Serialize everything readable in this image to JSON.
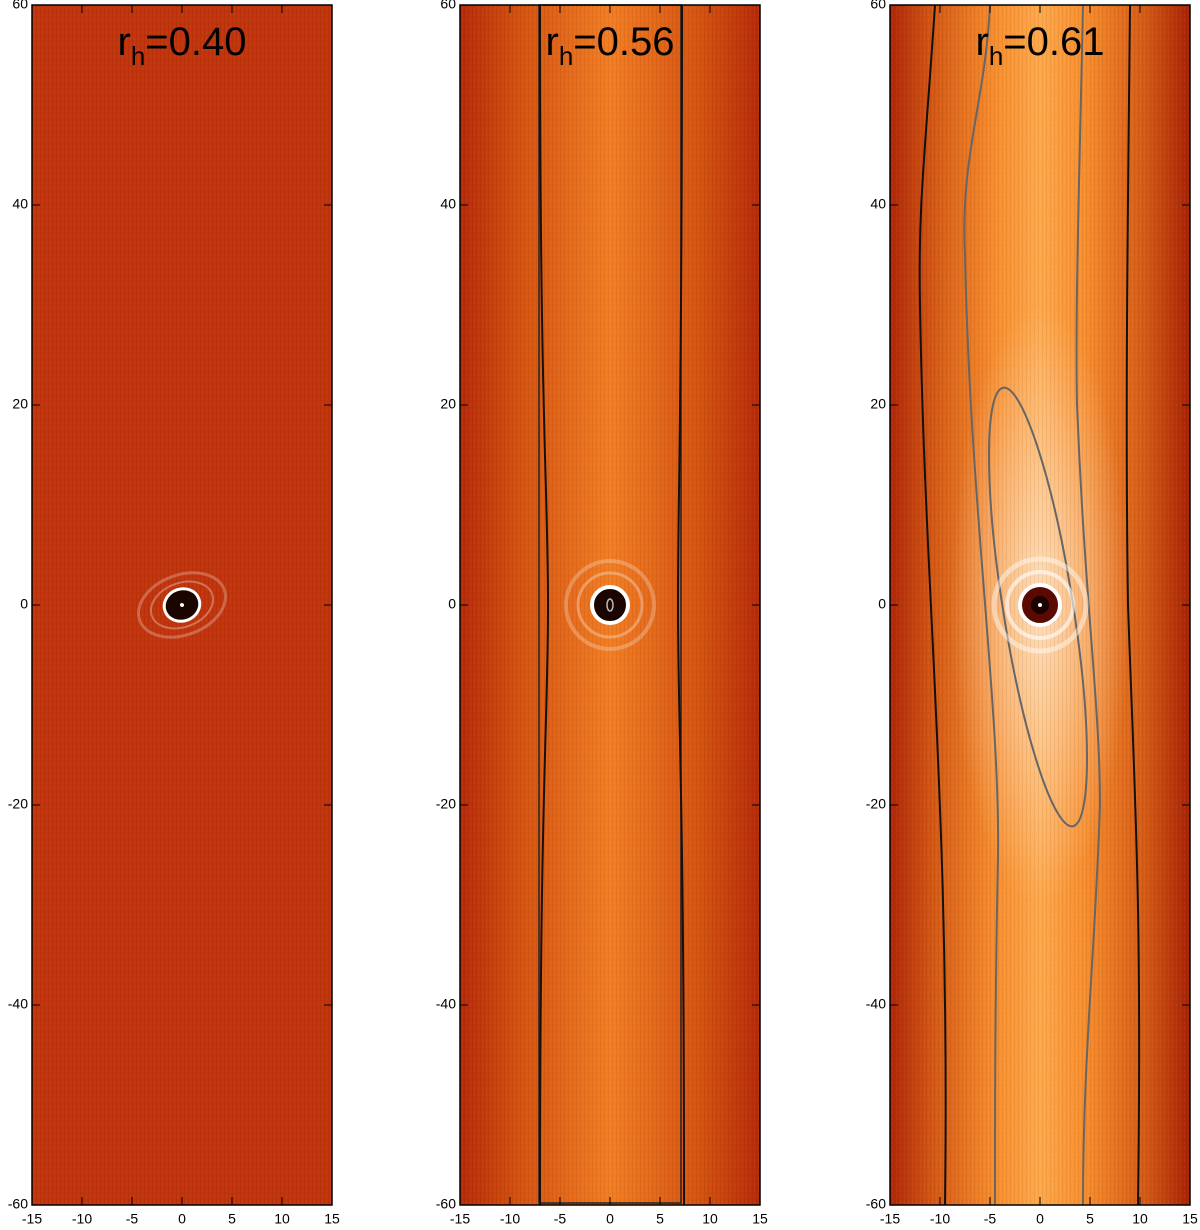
{
  "chart_data": [
    {
      "type": "heatmap",
      "title": {
        "base": "r",
        "subscript": "h",
        "rest": "=0.40"
      },
      "xlim": [
        -15,
        15
      ],
      "xticks": [
        -15,
        -10,
        -5,
        0,
        5,
        10,
        15
      ],
      "ylim": [
        -60,
        60
      ],
      "yticks": [
        -60,
        -40,
        -20,
        0,
        20,
        40,
        60
      ]
    },
    {
      "type": "heatmap",
      "title": {
        "base": "r",
        "subscript": "h",
        "rest": "=0.56"
      },
      "xlim": [
        -15,
        15
      ],
      "xticks": [
        -15,
        -10,
        -5,
        0,
        5,
        10,
        15
      ],
      "ylim": [
        -60,
        60
      ],
      "yticks": [
        -60,
        -40,
        -20,
        0,
        20,
        40,
        60
      ]
    },
    {
      "type": "heatmap",
      "title": {
        "base": "r",
        "subscript": "h",
        "rest": "=0.61"
      },
      "xlim": [
        -15,
        15
      ],
      "xticks": [
        -15,
        -10,
        -5,
        0,
        5,
        10,
        15
      ],
      "ylim": [
        -60,
        60
      ],
      "yticks": [
        -60,
        -40,
        -20,
        0,
        20,
        40,
        60
      ]
    }
  ]
}
